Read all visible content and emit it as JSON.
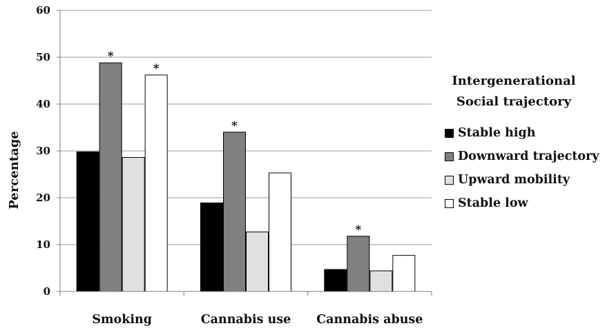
{
  "chart_data": {
    "type": "bar",
    "categories": [
      "Smoking",
      "Cannabis use",
      "Cannabis abuse"
    ],
    "ylabel": "Percentage",
    "ylim": [
      0,
      60
    ],
    "yticks": [
      "0",
      "10",
      "20",
      "30",
      "40",
      "50",
      "60"
    ],
    "grid": true,
    "legend_position": "right",
    "legend_title": [
      "Intergenerational",
      "Social trajectory"
    ],
    "series": [
      {
        "name": "Stable high",
        "color": "#000000",
        "values": [
          29.8,
          18.9,
          4.7
        ],
        "markers": [
          "",
          "",
          ""
        ]
      },
      {
        "name": "Downward trajectory",
        "color": "#808080",
        "values": [
          48.8,
          34.0,
          11.8
        ],
        "markers": [
          "*",
          "*",
          "*"
        ]
      },
      {
        "name": "Upward mobility",
        "color": "#e0e0e0",
        "values": [
          28.6,
          12.7,
          4.4
        ],
        "markers": [
          "",
          "",
          ""
        ]
      },
      {
        "name": "Stable low",
        "color": "#ffffff",
        "values": [
          46.2,
          25.3,
          7.7
        ],
        "markers": [
          "*",
          "",
          ""
        ]
      }
    ]
  }
}
